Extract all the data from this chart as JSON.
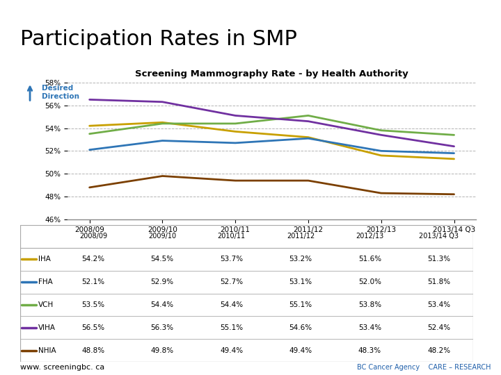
{
  "title": "Participation Rates in SMP",
  "chart_title": "Screening Mammography Rate - by Health Authority",
  "x_labels": [
    "2008/09",
    "2009/10",
    "2010/11",
    "2011/12",
    "2012/13",
    "2013/14 Q3"
  ],
  "y_min": 46,
  "y_max": 58,
  "y_ticks": [
    46,
    48,
    50,
    52,
    54,
    56,
    58
  ],
  "series": [
    {
      "name": "IHA",
      "color": "#C8A000",
      "values": [
        54.2,
        54.5,
        53.7,
        53.2,
        51.6,
        51.3
      ]
    },
    {
      "name": "FHA",
      "color": "#2E75B6",
      "values": [
        52.1,
        52.9,
        52.7,
        53.1,
        52.0,
        51.8
      ]
    },
    {
      "name": "VCH",
      "color": "#70AD47",
      "values": [
        53.5,
        54.4,
        54.4,
        55.1,
        53.8,
        53.4
      ]
    },
    {
      "name": "VIHA",
      "color": "#7030A0",
      "values": [
        56.5,
        56.3,
        55.1,
        54.6,
        53.4,
        52.4
      ]
    },
    {
      "name": "NHIA",
      "color": "#7B3F00",
      "values": [
        48.8,
        49.8,
        49.4,
        49.4,
        48.3,
        48.2
      ]
    }
  ],
  "table_data": [
    [
      "",
      "2008/09",
      "2009/10",
      "2010/11",
      "2011/12",
      "2012/13",
      "2013/14 Q3"
    ],
    [
      "IHA",
      "54.2%",
      "54.5%",
      "53.7%",
      "53.2%",
      "51.6%",
      "51.3%"
    ],
    [
      "FHA",
      "52.1%",
      "52.9%",
      "52.7%",
      "53.1%",
      "52.0%",
      "51.8%"
    ],
    [
      "VCH",
      "53.5%",
      "54.4%",
      "54.4%",
      "55.1%",
      "53.8%",
      "53.4%"
    ],
    [
      "VIHA",
      "56.5%",
      "56.3%",
      "55.1%",
      "54.6%",
      "53.4%",
      "52.4%"
    ],
    [
      "NHIA",
      "48.8%",
      "49.8%",
      "49.4%",
      "49.4%",
      "48.3%",
      "48.2%"
    ]
  ],
  "desired_direction_color": "#2E75B6",
  "website": "www. screeningbc. ca",
  "bg_color": "#FFFFFF",
  "title_bar_color": "#1F3864",
  "grid_color": "#A0A0A0"
}
